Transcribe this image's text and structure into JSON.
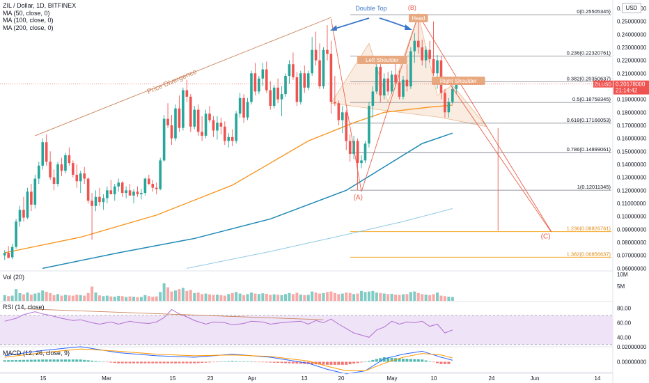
{
  "header": {
    "title": "ZIL / Dollar, 1D, BITFINEX",
    "ma_50": "MA (50, close, 0)",
    "ma_100": "MA (100, close, 0)",
    "ma_200": "MA (200, close, 0)"
  },
  "currency_button": "USD",
  "panes": {
    "volume_label": "Vol (20)",
    "rsi_label": "RSI (14, close)",
    "macd_label": "MACD (12, 26, close, 9)"
  },
  "colors": {
    "up": "#26a69a",
    "down": "#ef5350",
    "ma50": "#f7931a",
    "ma100": "#1e88b5",
    "ma200": "#8ec9e3",
    "fib": "#787b86",
    "fib_ext": "#f5a623",
    "pattern": "#e8b78e",
    "trendline": "#c9825a",
    "projection": "#e8604c",
    "double_top": "#3a77c9",
    "rsi": "#b26fd1",
    "rsi_band": "#efe3f7",
    "macd": "#2962ff",
    "signal": "#ff9800",
    "price_tag": "#ef5350"
  },
  "chart_data": {
    "type": "candlestick",
    "title": "ZIL / Dollar, 1D, BITFINEX",
    "x_ticks": [
      "15",
      "Mar",
      "15",
      "23",
      "Apr",
      "13",
      "20",
      "May",
      "10",
      "24",
      "Jun",
      "14"
    ],
    "y_ticks": [
      "0.26000000",
      "0.25000000",
      "0.24000000",
      "0.23000000",
      "0.22000000",
      "0.21000000",
      "0.20000000",
      "0.19000000",
      "0.18000000",
      "0.17000000",
      "0.16000000",
      "0.15000000",
      "0.14000000",
      "0.13000000",
      "0.12000000",
      "0.11000000",
      "0.10000000",
      "0.09000000",
      "0.08000000",
      "0.07000000",
      "0.06000000"
    ],
    "ylim": [
      0.0586,
      0.2637
    ],
    "last_price": {
      "symbol": "ZILUSD",
      "value": "0.20178000",
      "countdown": "21:14:42",
      "y": 0.20178
    },
    "candles": [
      {
        "o": 0.07,
        "h": 0.074,
        "l": 0.0665,
        "c": 0.072
      },
      {
        "o": 0.072,
        "h": 0.077,
        "l": 0.069,
        "c": 0.068
      },
      {
        "o": 0.0685,
        "h": 0.079,
        "l": 0.067,
        "c": 0.0765
      },
      {
        "o": 0.0765,
        "h": 0.098,
        "l": 0.075,
        "c": 0.096
      },
      {
        "o": 0.096,
        "h": 0.108,
        "l": 0.092,
        "c": 0.105
      },
      {
        "o": 0.105,
        "h": 0.115,
        "l": 0.096,
        "c": 0.099
      },
      {
        "o": 0.099,
        "h": 0.122,
        "l": 0.098,
        "c": 0.119
      },
      {
        "o": 0.119,
        "h": 0.125,
        "l": 0.104,
        "c": 0.109
      },
      {
        "o": 0.109,
        "h": 0.132,
        "l": 0.106,
        "c": 0.129
      },
      {
        "o": 0.129,
        "h": 0.142,
        "l": 0.125,
        "c": 0.139
      },
      {
        "o": 0.139,
        "h": 0.16,
        "l": 0.136,
        "c": 0.157
      },
      {
        "o": 0.157,
        "h": 0.163,
        "l": 0.139,
        "c": 0.142
      },
      {
        "o": 0.142,
        "h": 0.15,
        "l": 0.128,
        "c": 0.13
      },
      {
        "o": 0.13,
        "h": 0.136,
        "l": 0.12,
        "c": 0.125
      },
      {
        "o": 0.125,
        "h": 0.142,
        "l": 0.123,
        "c": 0.14
      },
      {
        "o": 0.14,
        "h": 0.145,
        "l": 0.131,
        "c": 0.135
      },
      {
        "o": 0.135,
        "h": 0.149,
        "l": 0.133,
        "c": 0.147
      },
      {
        "o": 0.147,
        "h": 0.153,
        "l": 0.139,
        "c": 0.141
      },
      {
        "o": 0.141,
        "h": 0.143,
        "l": 0.13,
        "c": 0.132
      },
      {
        "o": 0.132,
        "h": 0.14,
        "l": 0.122,
        "c": 0.127
      },
      {
        "o": 0.127,
        "h": 0.135,
        "l": 0.118,
        "c": 0.133
      },
      {
        "o": 0.133,
        "h": 0.138,
        "l": 0.125,
        "c": 0.129
      },
      {
        "o": 0.129,
        "h": 0.13,
        "l": 0.11,
        "c": 0.112
      },
      {
        "o": 0.112,
        "h": 0.118,
        "l": 0.082,
        "c": 0.108
      },
      {
        "o": 0.108,
        "h": 0.12,
        "l": 0.104,
        "c": 0.115
      },
      {
        "o": 0.115,
        "h": 0.122,
        "l": 0.108,
        "c": 0.111
      },
      {
        "o": 0.111,
        "h": 0.117,
        "l": 0.105,
        "c": 0.114
      },
      {
        "o": 0.114,
        "h": 0.123,
        "l": 0.11,
        "c": 0.12
      },
      {
        "o": 0.12,
        "h": 0.128,
        "l": 0.117,
        "c": 0.117
      },
      {
        "o": 0.117,
        "h": 0.125,
        "l": 0.112,
        "c": 0.123
      },
      {
        "o": 0.123,
        "h": 0.129,
        "l": 0.119,
        "c": 0.126
      },
      {
        "o": 0.126,
        "h": 0.127,
        "l": 0.115,
        "c": 0.118
      },
      {
        "o": 0.118,
        "h": 0.123,
        "l": 0.114,
        "c": 0.12
      },
      {
        "o": 0.12,
        "h": 0.125,
        "l": 0.116,
        "c": 0.116
      },
      {
        "o": 0.116,
        "h": 0.121,
        "l": 0.11,
        "c": 0.119
      },
      {
        "o": 0.119,
        "h": 0.123,
        "l": 0.115,
        "c": 0.117
      },
      {
        "o": 0.117,
        "h": 0.121,
        "l": 0.113,
        "c": 0.118
      },
      {
        "o": 0.118,
        "h": 0.13,
        "l": 0.116,
        "c": 0.129
      },
      {
        "o": 0.129,
        "h": 0.132,
        "l": 0.124,
        "c": 0.125
      },
      {
        "o": 0.125,
        "h": 0.128,
        "l": 0.119,
        "c": 0.122
      },
      {
        "o": 0.122,
        "h": 0.126,
        "l": 0.117,
        "c": 0.121
      },
      {
        "o": 0.121,
        "h": 0.145,
        "l": 0.12,
        "c": 0.143
      },
      {
        "o": 0.143,
        "h": 0.178,
        "l": 0.142,
        "c": 0.175
      },
      {
        "o": 0.175,
        "h": 0.187,
        "l": 0.168,
        "c": 0.17
      },
      {
        "o": 0.17,
        "h": 0.178,
        "l": 0.155,
        "c": 0.16
      },
      {
        "o": 0.16,
        "h": 0.186,
        "l": 0.158,
        "c": 0.183
      },
      {
        "o": 0.183,
        "h": 0.193,
        "l": 0.165,
        "c": 0.168
      },
      {
        "o": 0.168,
        "h": 0.199,
        "l": 0.166,
        "c": 0.197
      },
      {
        "o": 0.197,
        "h": 0.205,
        "l": 0.188,
        "c": 0.192
      },
      {
        "o": 0.192,
        "h": 0.194,
        "l": 0.165,
        "c": 0.169
      },
      {
        "o": 0.169,
        "h": 0.185,
        "l": 0.167,
        "c": 0.182
      },
      {
        "o": 0.182,
        "h": 0.186,
        "l": 0.162,
        "c": 0.165
      },
      {
        "o": 0.165,
        "h": 0.177,
        "l": 0.158,
        "c": 0.162
      },
      {
        "o": 0.162,
        "h": 0.182,
        "l": 0.16,
        "c": 0.179
      },
      {
        "o": 0.179,
        "h": 0.185,
        "l": 0.172,
        "c": 0.174
      },
      {
        "o": 0.174,
        "h": 0.177,
        "l": 0.161,
        "c": 0.166
      },
      {
        "o": 0.166,
        "h": 0.177,
        "l": 0.159,
        "c": 0.172
      },
      {
        "o": 0.172,
        "h": 0.176,
        "l": 0.163,
        "c": 0.169
      },
      {
        "o": 0.169,
        "h": 0.173,
        "l": 0.155,
        "c": 0.158
      },
      {
        "o": 0.158,
        "h": 0.164,
        "l": 0.153,
        "c": 0.161
      },
      {
        "o": 0.161,
        "h": 0.167,
        "l": 0.154,
        "c": 0.158
      },
      {
        "o": 0.158,
        "h": 0.181,
        "l": 0.156,
        "c": 0.179
      },
      {
        "o": 0.179,
        "h": 0.195,
        "l": 0.176,
        "c": 0.191
      },
      {
        "o": 0.191,
        "h": 0.194,
        "l": 0.172,
        "c": 0.176
      },
      {
        "o": 0.176,
        "h": 0.191,
        "l": 0.174,
        "c": 0.188
      },
      {
        "o": 0.188,
        "h": 0.212,
        "l": 0.186,
        "c": 0.21
      },
      {
        "o": 0.21,
        "h": 0.218,
        "l": 0.193,
        "c": 0.196
      },
      {
        "o": 0.196,
        "h": 0.208,
        "l": 0.194,
        "c": 0.206
      },
      {
        "o": 0.206,
        "h": 0.218,
        "l": 0.2,
        "c": 0.213
      },
      {
        "o": 0.213,
        "h": 0.219,
        "l": 0.195,
        "c": 0.197
      },
      {
        "o": 0.197,
        "h": 0.204,
        "l": 0.182,
        "c": 0.185
      },
      {
        "o": 0.185,
        "h": 0.201,
        "l": 0.183,
        "c": 0.199
      },
      {
        "o": 0.199,
        "h": 0.206,
        "l": 0.187,
        "c": 0.19
      },
      {
        "o": 0.19,
        "h": 0.2,
        "l": 0.177,
        "c": 0.194
      },
      {
        "o": 0.194,
        "h": 0.21,
        "l": 0.192,
        "c": 0.208
      },
      {
        "o": 0.208,
        "h": 0.22,
        "l": 0.202,
        "c": 0.217
      },
      {
        "o": 0.217,
        "h": 0.226,
        "l": 0.205,
        "c": 0.207
      },
      {
        "o": 0.207,
        "h": 0.211,
        "l": 0.185,
        "c": 0.188
      },
      {
        "o": 0.188,
        "h": 0.212,
        "l": 0.186,
        "c": 0.21
      },
      {
        "o": 0.21,
        "h": 0.216,
        "l": 0.195,
        "c": 0.199
      },
      {
        "o": 0.199,
        "h": 0.212,
        "l": 0.197,
        "c": 0.21
      },
      {
        "o": 0.21,
        "h": 0.238,
        "l": 0.208,
        "c": 0.228
      },
      {
        "o": 0.228,
        "h": 0.242,
        "l": 0.216,
        "c": 0.22
      },
      {
        "o": 0.22,
        "h": 0.233,
        "l": 0.198,
        "c": 0.2
      },
      {
        "o": 0.2,
        "h": 0.23,
        "l": 0.198,
        "c": 0.228
      },
      {
        "o": 0.228,
        "h": 0.247,
        "l": 0.22,
        "c": 0.225
      },
      {
        "o": 0.225,
        "h": 0.235,
        "l": 0.179,
        "c": 0.188
      },
      {
        "o": 0.188,
        "h": 0.208,
        "l": 0.185,
        "c": 0.187
      },
      {
        "o": 0.187,
        "h": 0.189,
        "l": 0.17,
        "c": 0.174
      },
      {
        "o": 0.174,
        "h": 0.185,
        "l": 0.164,
        "c": 0.18
      },
      {
        "o": 0.18,
        "h": 0.182,
        "l": 0.151,
        "c": 0.158
      },
      {
        "o": 0.158,
        "h": 0.163,
        "l": 0.142,
        "c": 0.148
      },
      {
        "o": 0.148,
        "h": 0.162,
        "l": 0.144,
        "c": 0.158
      },
      {
        "o": 0.158,
        "h": 0.16,
        "l": 0.12,
        "c": 0.141
      },
      {
        "o": 0.141,
        "h": 0.147,
        "l": 0.137,
        "c": 0.143
      },
      {
        "o": 0.143,
        "h": 0.158,
        "l": 0.141,
        "c": 0.156
      },
      {
        "o": 0.156,
        "h": 0.188,
        "l": 0.153,
        "c": 0.185
      },
      {
        "o": 0.185,
        "h": 0.2,
        "l": 0.176,
        "c": 0.196
      },
      {
        "o": 0.196,
        "h": 0.22,
        "l": 0.194,
        "c": 0.215
      },
      {
        "o": 0.215,
        "h": 0.218,
        "l": 0.188,
        "c": 0.193
      },
      {
        "o": 0.193,
        "h": 0.21,
        "l": 0.19,
        "c": 0.206
      },
      {
        "o": 0.206,
        "h": 0.211,
        "l": 0.193,
        "c": 0.196
      },
      {
        "o": 0.196,
        "h": 0.212,
        "l": 0.194,
        "c": 0.209
      },
      {
        "o": 0.209,
        "h": 0.218,
        "l": 0.2,
        "c": 0.203
      },
      {
        "o": 0.203,
        "h": 0.212,
        "l": 0.19,
        "c": 0.192
      },
      {
        "o": 0.192,
        "h": 0.208,
        "l": 0.19,
        "c": 0.205
      },
      {
        "o": 0.205,
        "h": 0.217,
        "l": 0.196,
        "c": 0.2
      },
      {
        "o": 0.2,
        "h": 0.23,
        "l": 0.198,
        "c": 0.227
      },
      {
        "o": 0.227,
        "h": 0.241,
        "l": 0.218,
        "c": 0.235
      },
      {
        "o": 0.235,
        "h": 0.256,
        "l": 0.225,
        "c": 0.23
      },
      {
        "o": 0.23,
        "h": 0.236,
        "l": 0.216,
        "c": 0.22
      },
      {
        "o": 0.22,
        "h": 0.231,
        "l": 0.214,
        "c": 0.228
      },
      {
        "o": 0.228,
        "h": 0.235,
        "l": 0.218,
        "c": 0.221
      },
      {
        "o": 0.221,
        "h": 0.25,
        "l": 0.208,
        "c": 0.21
      },
      {
        "o": 0.21,
        "h": 0.224,
        "l": 0.198,
        "c": 0.22
      },
      {
        "o": 0.22,
        "h": 0.223,
        "l": 0.19,
        "c": 0.195
      },
      {
        "o": 0.195,
        "h": 0.198,
        "l": 0.176,
        "c": 0.18
      },
      {
        "o": 0.18,
        "h": 0.191,
        "l": 0.176,
        "c": 0.188
      },
      {
        "o": 0.188,
        "h": 0.2,
        "l": 0.186,
        "c": 0.198
      },
      {
        "o": 0.198,
        "h": 0.206,
        "l": 0.194,
        "c": 0.2018
      }
    ],
    "moving_averages": [
      {
        "name": "MA (50, close, 0)",
        "x": [
          0,
          20,
          40,
          60,
          80,
          92,
          100,
          112,
          118
        ],
        "y": [
          0.072,
          0.084,
          0.101,
          0.124,
          0.158,
          0.172,
          0.18,
          0.184,
          0.1855
        ]
      },
      {
        "name": "MA (100, close, 0)",
        "x": [
          10,
          30,
          50,
          70,
          90,
          100,
          110,
          118
        ],
        "y": [
          0.06,
          0.072,
          0.083,
          0.098,
          0.12,
          0.138,
          0.156,
          0.164
        ]
      },
      {
        "name": "MA (200, close, 0)",
        "x": [
          48,
          70,
          90,
          105,
          118
        ],
        "y": [
          0.06,
          0.073,
          0.086,
          0.096,
          0.106
        ]
      }
    ],
    "fibonacci": [
      {
        "ratio": "0",
        "value": 0.25505345,
        "label": "0(0.25505345)"
      },
      {
        "ratio": "0.236",
        "value": 0.22320761,
        "label": "0.236(0.22320761)"
      },
      {
        "ratio": "0.382",
        "value": 0.20350637,
        "label": "0.382(0.20350637)"
      },
      {
        "ratio": "0.5",
        "value": 0.18758345,
        "label": "0.5(0.18758345)"
      },
      {
        "ratio": "0.618",
        "value": 0.17166053,
        "label": "0.618(0.17166053)"
      },
      {
        "ratio": "0.786",
        "value": 0.14899061,
        "label": "0.786(0.14899061)"
      },
      {
        "ratio": "1",
        "value": 0.12011345,
        "label": "1(0.12011345)"
      },
      {
        "ratio": "1.236",
        "value": 0.08826761,
        "label": "1.236(0.08826761)"
      },
      {
        "ratio": "1.382",
        "value": 0.06856637,
        "label": "1.382(0.06856637)"
      }
    ],
    "annotations": {
      "double_top": "Double Top",
      "head": "Head",
      "left_shoulder": "Left Shoulder",
      "right_shoulder": "Right Shoulder",
      "price_divergence": "Price Divergence",
      "wave_a": "(A)",
      "wave_b": "(B)",
      "wave_c": "(C)"
    },
    "volume_axis": [
      "10M",
      "5M"
    ],
    "volume": [
      2.2,
      1.8,
      2.0,
      4.5,
      3.0,
      2.5,
      3.2,
      2.4,
      2.8,
      3.1,
      4.0,
      3.5,
      3.0,
      2.2,
      2.6,
      2.0,
      2.3,
      2.1,
      2.0,
      2.4,
      2.2,
      2.0,
      3.0,
      5.5,
      3.2,
      2.1,
      1.8,
      2.0,
      1.7,
      1.6,
      1.9,
      1.8,
      1.5,
      1.7,
      1.6,
      1.4,
      1.5,
      2.2,
      1.8,
      1.6,
      1.7,
      3.4,
      6.8,
      5.2,
      3.6,
      4.0,
      4.5,
      5.0,
      3.8,
      4.2,
      3.0,
      3.2,
      2.6,
      2.8,
      2.5,
      2.3,
      2.4,
      2.2,
      2.0,
      2.6,
      3.0,
      3.4,
      2.8,
      2.2,
      2.6,
      3.2,
      2.8,
      2.6,
      2.9,
      2.7,
      2.3,
      2.5,
      2.4,
      2.2,
      2.6,
      3.0,
      2.6,
      3.1,
      2.4,
      2.2,
      2.3,
      3.6,
      3.2,
      2.8,
      3.0,
      3.4,
      3.6,
      3.0,
      2.6,
      2.8,
      3.2,
      3.0,
      2.6,
      2.8,
      3.8,
      3.4,
      3.6,
      3.8,
      3.2,
      3.0,
      2.8,
      2.6,
      2.7,
      2.4,
      2.3,
      2.5,
      2.6,
      3.4,
      3.6,
      3.0,
      2.6,
      2.4,
      2.2,
      2.6,
      3.2,
      2.0,
      1.8,
      1.6,
      1.5
    ],
    "rsi_axis": [
      "80.00",
      "60.00",
      "40.00"
    ],
    "rsi": {
      "x": [
        0,
        3,
        5,
        8,
        10,
        12,
        15,
        18,
        20,
        23,
        25,
        28,
        30,
        33,
        35,
        38,
        40,
        42,
        44,
        46,
        48,
        50,
        53,
        55,
        58,
        60,
        63,
        65,
        68,
        70,
        73,
        75,
        78,
        80,
        82,
        84,
        86,
        88,
        90,
        92,
        94,
        96,
        98,
        100,
        102,
        104,
        106,
        108,
        110,
        112,
        114,
        116,
        118
      ],
      "y": [
        62,
        66,
        71,
        75,
        72,
        70,
        66,
        63,
        64,
        60,
        58,
        61,
        58,
        62,
        60,
        59,
        61,
        67,
        78,
        72,
        68,
        63,
        58,
        61,
        60,
        57,
        59,
        62,
        61,
        58,
        60,
        61,
        62,
        58,
        63,
        60,
        65,
        58,
        52,
        46,
        43,
        40,
        50,
        54,
        62,
        58,
        61,
        60,
        62,
        55,
        58,
        46,
        50
      ]
    },
    "macd_axis": [
      "0.02000000",
      "0.00000000"
    ],
    "macd": {
      "x": [
        0,
        10,
        20,
        30,
        40,
        50,
        60,
        70,
        80,
        85,
        90,
        95,
        100,
        105,
        110,
        115,
        118
      ],
      "macd": [
        0.008,
        0.015,
        0.02,
        0.012,
        0.008,
        0.006,
        0.01,
        0.006,
        -0.002,
        -0.01,
        -0.016,
        -0.012,
        0.004,
        0.01,
        0.014,
        0.006,
        0.002
      ],
      "signal": [
        0.006,
        0.012,
        0.017,
        0.014,
        0.01,
        0.008,
        0.009,
        0.007,
        0.001,
        -0.006,
        -0.012,
        -0.012,
        -0.002,
        0.006,
        0.011,
        0.009,
        0.005
      ]
    }
  }
}
